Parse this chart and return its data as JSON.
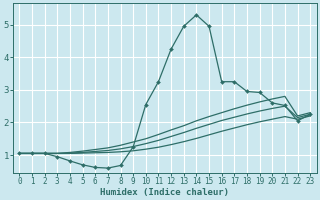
{
  "xlabel": "Humidex (Indice chaleur)",
  "xlim": [
    -0.5,
    23.5
  ],
  "ylim": [
    0.45,
    5.65
  ],
  "yticks": [
    1,
    2,
    3,
    4,
    5
  ],
  "xticks": [
    0,
    1,
    2,
    3,
    4,
    5,
    6,
    7,
    8,
    9,
    10,
    11,
    12,
    13,
    14,
    15,
    16,
    17,
    18,
    19,
    20,
    21,
    22,
    23
  ],
  "bg_color": "#cce8ef",
  "grid_color": "#ffffff",
  "line_color": "#2e6e68",
  "lines": [
    {
      "x": [
        0,
        1,
        2,
        3,
        4,
        5,
        6,
        7,
        8,
        9,
        10,
        11,
        12,
        13,
        14,
        15,
        16,
        17,
        18,
        19,
        20,
        21,
        22,
        23
      ],
      "y": [
        1.05,
        1.05,
        1.05,
        0.95,
        0.82,
        0.7,
        0.62,
        0.6,
        0.68,
        1.25,
        2.55,
        3.25,
        4.25,
        4.95,
        5.3,
        4.95,
        3.25,
        3.25,
        2.95,
        2.92,
        2.6,
        2.52,
        2.05,
        2.25
      ],
      "marker": "D",
      "marker_size": 2.0,
      "lw": 0.9
    },
    {
      "x": [
        0,
        1,
        2,
        3,
        4,
        5,
        6,
        7,
        8,
        9,
        10,
        11,
        12,
        13,
        14,
        15,
        16,
        17,
        18,
        19,
        20,
        21,
        22,
        23
      ],
      "y": [
        1.05,
        1.05,
        1.05,
        1.05,
        1.08,
        1.12,
        1.17,
        1.22,
        1.3,
        1.4,
        1.5,
        1.63,
        1.77,
        1.9,
        2.05,
        2.18,
        2.3,
        2.42,
        2.53,
        2.63,
        2.72,
        2.8,
        2.2,
        2.3
      ],
      "marker": null,
      "marker_size": 0,
      "lw": 0.9
    },
    {
      "x": [
        0,
        1,
        2,
        3,
        4,
        5,
        6,
        7,
        8,
        9,
        10,
        11,
        12,
        13,
        14,
        15,
        16,
        17,
        18,
        19,
        20,
        21,
        22,
        23
      ],
      "y": [
        1.05,
        1.05,
        1.05,
        1.05,
        1.06,
        1.08,
        1.11,
        1.14,
        1.19,
        1.26,
        1.35,
        1.45,
        1.57,
        1.69,
        1.82,
        1.94,
        2.06,
        2.16,
        2.26,
        2.35,
        2.43,
        2.5,
        2.15,
        2.25
      ],
      "marker": null,
      "marker_size": 0,
      "lw": 0.9
    },
    {
      "x": [
        0,
        1,
        2,
        3,
        4,
        5,
        6,
        7,
        8,
        9,
        10,
        11,
        12,
        13,
        14,
        15,
        16,
        17,
        18,
        19,
        20,
        21,
        22,
        23
      ],
      "y": [
        1.05,
        1.05,
        1.05,
        1.05,
        1.05,
        1.06,
        1.07,
        1.08,
        1.1,
        1.13,
        1.18,
        1.24,
        1.32,
        1.41,
        1.51,
        1.62,
        1.73,
        1.83,
        1.93,
        2.02,
        2.1,
        2.18,
        2.1,
        2.2
      ],
      "marker": null,
      "marker_size": 0,
      "lw": 0.9
    }
  ]
}
